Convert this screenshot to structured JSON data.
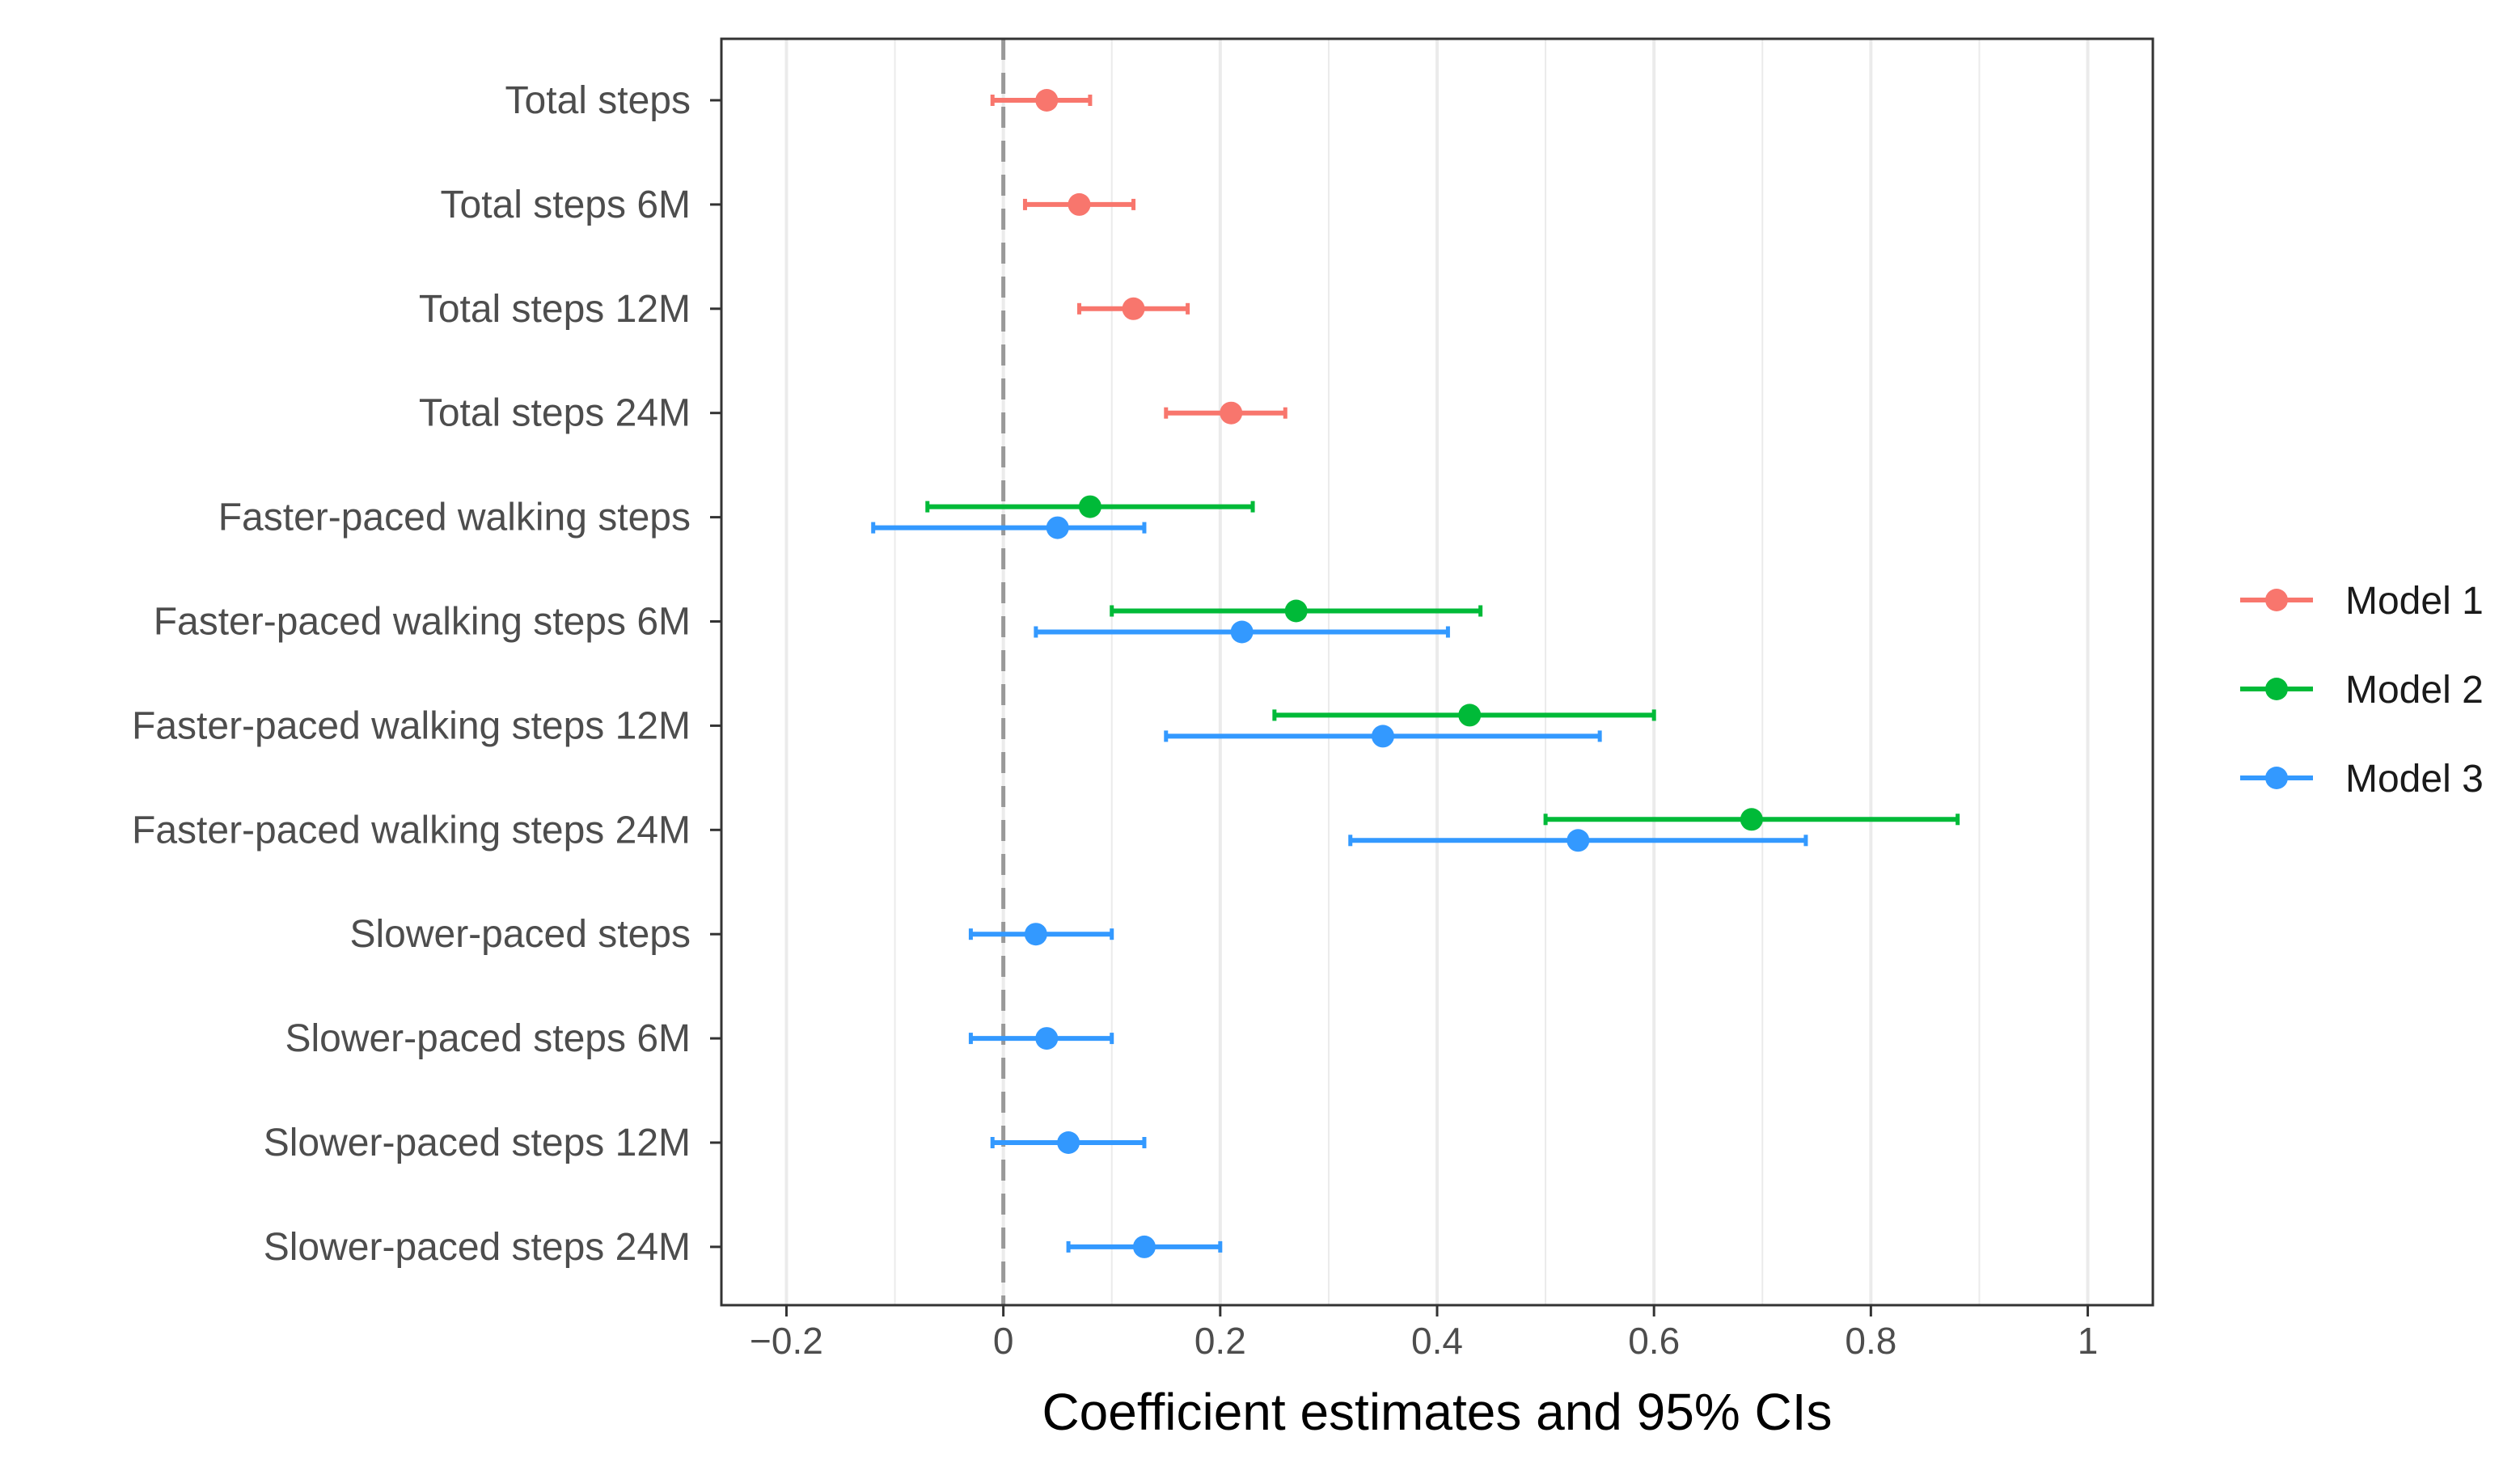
{
  "chart_data": {
    "type": "forest",
    "title": "",
    "xlabel": "Coefficient estimates and 95% CIs",
    "ylabel": "",
    "xlim": [
      -0.26,
      1.06
    ],
    "xticks": [
      -0.2,
      0,
      0.2,
      0.4,
      0.6,
      0.8,
      1
    ],
    "xtick_labels": [
      "−0.2",
      "0",
      "0.2",
      "0.4",
      "0.6",
      "0.8",
      "1"
    ],
    "reference_line": 0,
    "grid": true,
    "legend_position": "right",
    "categories": [
      "Total steps",
      "Total steps 6M",
      "Total steps 12M",
      "Total steps 24M",
      "Faster-paced walking steps",
      "Faster-paced walking steps 6M",
      "Faster-paced walking steps 12M",
      "Faster-paced walking steps 24M",
      "Slower-paced steps",
      "Slower-paced steps 6M",
      "Slower-paced steps 12M",
      "Slower-paced steps 24M"
    ],
    "series": [
      {
        "name": "Model 1",
        "color": "#F8766D",
        "points": [
          {
            "category": "Total steps",
            "estimate": 0.04,
            "lower": -0.01,
            "upper": 0.08
          },
          {
            "category": "Total steps 6M",
            "estimate": 0.07,
            "lower": 0.02,
            "upper": 0.12
          },
          {
            "category": "Total steps 12M",
            "estimate": 0.12,
            "lower": 0.07,
            "upper": 0.17
          },
          {
            "category": "Total steps 24M",
            "estimate": 0.21,
            "lower": 0.15,
            "upper": 0.26
          }
        ]
      },
      {
        "name": "Model 2",
        "color": "#00BA38",
        "points": [
          {
            "category": "Faster-paced walking steps",
            "estimate": 0.08,
            "lower": -0.07,
            "upper": 0.23
          },
          {
            "category": "Faster-paced walking steps 6M",
            "estimate": 0.27,
            "lower": 0.1,
            "upper": 0.44
          },
          {
            "category": "Faster-paced walking steps 12M",
            "estimate": 0.43,
            "lower": 0.25,
            "upper": 0.6
          },
          {
            "category": "Faster-paced walking steps 24M",
            "estimate": 0.69,
            "lower": 0.5,
            "upper": 0.88
          }
        ]
      },
      {
        "name": "Model 3",
        "color": "#3399FF",
        "points": [
          {
            "category": "Faster-paced walking steps",
            "estimate": 0.05,
            "lower": -0.12,
            "upper": 0.13
          },
          {
            "category": "Faster-paced walking steps 6M",
            "estimate": 0.22,
            "lower": 0.03,
            "upper": 0.41
          },
          {
            "category": "Faster-paced walking steps 12M",
            "estimate": 0.35,
            "lower": 0.15,
            "upper": 0.55
          },
          {
            "category": "Faster-paced walking steps 24M",
            "estimate": 0.53,
            "lower": 0.32,
            "upper": 0.74
          },
          {
            "category": "Slower-paced steps",
            "estimate": 0.03,
            "lower": -0.03,
            "upper": 0.1
          },
          {
            "category": "Slower-paced steps 6M",
            "estimate": 0.04,
            "lower": -0.03,
            "upper": 0.1
          },
          {
            "category": "Slower-paced steps 12M",
            "estimate": 0.06,
            "lower": -0.01,
            "upper": 0.13
          },
          {
            "category": "Slower-paced steps 24M",
            "estimate": 0.13,
            "lower": 0.06,
            "upper": 0.2
          }
        ]
      }
    ]
  }
}
